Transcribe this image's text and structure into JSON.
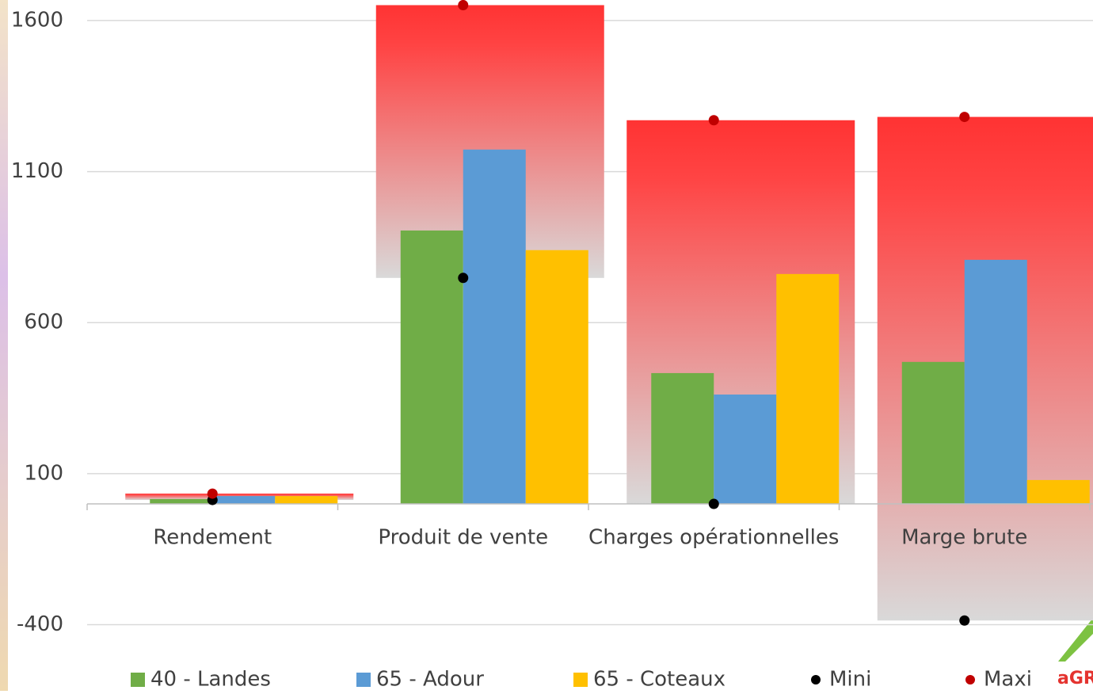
{
  "chart_data": {
    "type": "bar",
    "categories": [
      "Rendement",
      "Produit de vente",
      "Charges opérationnelles",
      "Marge brute"
    ],
    "series": [
      {
        "name": "40 - Landes",
        "type": "bar",
        "color": "#70ad47",
        "values": [
          16,
          905,
          433,
          470
        ]
      },
      {
        "name": "65 - Adour",
        "type": "bar",
        "color": "#5b9bd5",
        "values": [
          26,
          1173,
          362,
          808
        ]
      },
      {
        "name": "65 - Coteaux",
        "type": "bar",
        "color": "#ffc000",
        "values": [
          26,
          840,
          761,
          79
        ]
      },
      {
        "name": "Mini",
        "type": "scatter",
        "color": "#000000",
        "values": [
          13,
          748,
          0,
          -386
        ]
      },
      {
        "name": "Maxi",
        "type": "scatter",
        "color": "#c00000",
        "values": [
          34,
          1651,
          1270,
          1281
        ]
      }
    ],
    "ylim": [
      -430,
      1668
    ],
    "yticks": [
      1600,
      1100,
      600,
      100,
      -400
    ],
    "grid": true,
    "legend": "bottom",
    "logo": "aGR"
  }
}
